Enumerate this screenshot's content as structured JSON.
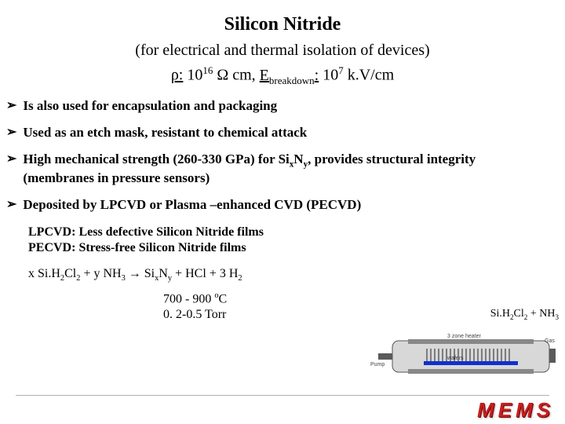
{
  "title": "Silicon Nitride",
  "subtitle": "(for electrical and thermal isolation of devices)",
  "props": {
    "rho_label": "ρ:",
    "rho_base": "10",
    "rho_exp": "16",
    "rho_unit": "Ω cm,",
    "e_label": "E",
    "e_sub": "breakdown",
    "e_colon": ":",
    "e_base": "10",
    "e_exp": "7",
    "e_unit": "k.V/cm"
  },
  "bullets": [
    {
      "text": "Is also used for encapsulation and packaging"
    },
    {
      "text": "Used as an etch mask, resistant to chemical attack"
    },
    {
      "html": "High mechanical strength (260-330 GPa) for Si<sub>x</sub>N<sub>y</sub>, provides structural integrity (membranes in pressure sensors)"
    },
    {
      "text": "Deposited by LPCVD or Plasma –enhanced CVD (PECVD)"
    }
  ],
  "sub_block": {
    "line1": "LPCVD: Less defective Silicon Nitride films",
    "line2": "PECVD: Stress-free  Silicon Nitride films"
  },
  "equation_html": "x Si.H<sub>2</sub>Cl<sub>2</sub> + y NH<sub>3</sub> → Si<sub>x</sub>N<sub>y</sub> + HCl + 3 H<sub>2</sub>",
  "conditions": {
    "line1_html": "700 - 900 <sup>o</sup>C",
    "line2": "0. 2-0.5 Torr"
  },
  "side_chem_html": "Si.H<sub>2</sub>Cl<sub>2</sub> + NH<sub>3</sub>",
  "diagram": {
    "tube_fill": "#d8d8d8",
    "tube_stroke": "#555555",
    "heater_fill": "#888888",
    "holder_fill": "#5a5a5a",
    "wafer_fill": "#1030d0",
    "labels": {
      "heater": "3 zone heater",
      "wafers": "wafers",
      "pump": "Pump",
      "gas": "Gas"
    },
    "label_color": "#444444",
    "label_fontsize": 7
  },
  "mems_text": "MEMS",
  "mems_color": "#c62020"
}
